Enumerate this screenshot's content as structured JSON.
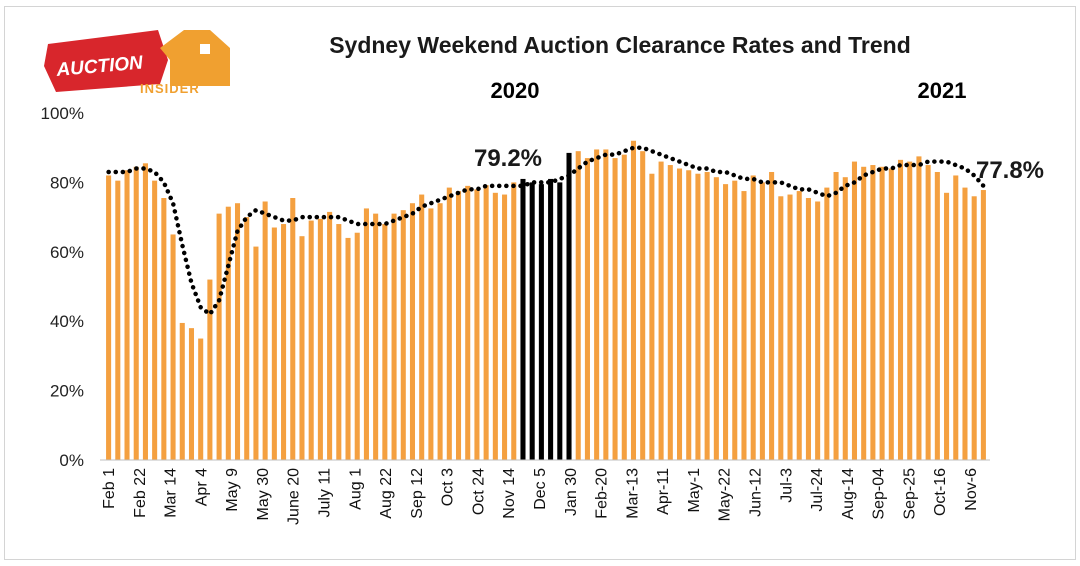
{
  "logo": {
    "line1": "AUCTION",
    "line2": "INSIDER"
  },
  "chart_data": {
    "type": "bar",
    "title": "Sydney Weekend Auction Clearance Rates and Trend",
    "year_labels": [
      "2020",
      "2021"
    ],
    "ylim": [
      0,
      100
    ],
    "y_ticks": [
      "0%",
      "20%",
      "40%",
      "60%",
      "80%",
      "100%"
    ],
    "x_tick_labels": [
      "Feb 1",
      "Feb 22",
      "Mar 14",
      "Apr 4",
      "May 9",
      "May 30",
      "June 20",
      "July 11",
      "Aug 1",
      "Aug 22",
      "Sep 12",
      "Oct 3",
      "Oct 24",
      "Nov 14",
      "Dec 5",
      "Jan 30",
      "Feb-20",
      "Mar-13",
      "Apr-11",
      "May-1",
      "May-22",
      "Jun-12",
      "Jul-3",
      "Jul-24",
      "Aug-14",
      "Sep-04",
      "Sep-25",
      "Oct-16",
      "Nov-6"
    ],
    "annotations": [
      "79.2%",
      "77.8%"
    ],
    "colors": {
      "bar": "#F4A040",
      "highlight_bar": "#000000",
      "trend": "#000000"
    },
    "series": [
      {
        "values": [
          82,
          80.5,
          83.5,
          84.5,
          85.5,
          80.5,
          75.5,
          65,
          39.5,
          38,
          35,
          52,
          71,
          73,
          74,
          70,
          61.5,
          74.5,
          67,
          68,
          75.5,
          64.5,
          69,
          69.5,
          71.5,
          68,
          64,
          65.5,
          72.5,
          71,
          68,
          71,
          72,
          74,
          76.5,
          72.5,
          74,
          78.5,
          77.5,
          79,
          78,
          79.2,
          77,
          76.5,
          80,
          81,
          80,
          79.5,
          81,
          80,
          88.5,
          89,
          87,
          89.5,
          89.5,
          87,
          88,
          92,
          89,
          82.5,
          86,
          85,
          84,
          83.5,
          82.5,
          83,
          81.5,
          79.5,
          80.5,
          77.5,
          82,
          80,
          83,
          76,
          76.5,
          77.5,
          75.5,
          74.5,
          78.5,
          83,
          81.5,
          86,
          84.5,
          85,
          84.5,
          84,
          86.5,
          86,
          87.5,
          85,
          83,
          77,
          82,
          78.5,
          76,
          77.8
        ],
        "highlight_indices": [
          45,
          46,
          47,
          48,
          49,
          50
        ]
      },
      {
        "values": [
          83,
          83,
          83,
          84,
          84,
          83,
          80,
          74,
          62,
          51,
          44,
          42,
          46,
          56,
          66,
          70,
          72,
          71,
          70,
          69,
          69,
          70,
          70,
          70,
          70,
          70,
          69,
          68,
          68,
          68,
          68,
          69,
          70,
          71,
          73,
          74,
          75,
          76,
          77,
          78,
          78,
          79,
          79,
          79,
          79,
          79,
          80,
          80,
          80,
          81,
          82,
          84,
          86,
          87,
          88,
          88,
          89,
          90,
          90,
          89,
          88,
          87,
          86,
          85,
          84,
          84,
          83,
          83,
          82,
          81,
          81,
          80,
          80,
          80,
          79,
          78,
          78,
          77,
          76,
          77,
          79,
          80,
          82,
          83,
          84,
          84,
          85,
          85,
          85,
          86,
          86,
          86,
          85,
          84,
          82,
          79
        ]
      }
    ]
  }
}
